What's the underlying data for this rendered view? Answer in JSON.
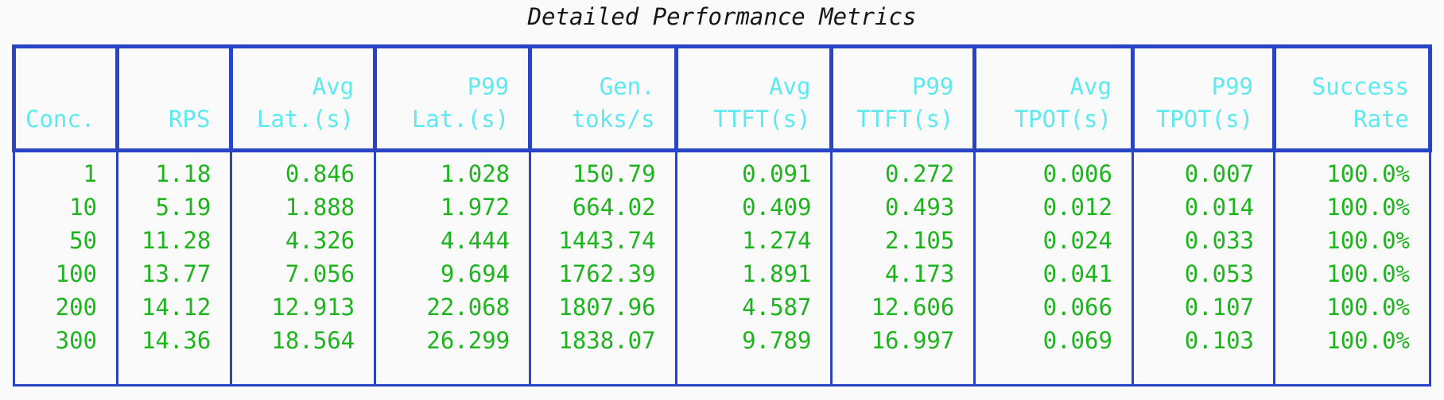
{
  "colors": {
    "background": "#fafafa",
    "border_blue": "#2a44c6",
    "header_text_cyan": "#5ee9f0",
    "data_text_green": "#1db41d",
    "title_text": "#161616"
  },
  "chart_data": {
    "type": "table",
    "title": "Detailed Performance Metrics",
    "columns": [
      "Conc.",
      "RPS",
      "Avg\nLat.(s)",
      "P99\nLat.(s)",
      "Gen.\ntoks/s",
      "Avg\nTTFT(s)",
      "P99\nTTFT(s)",
      "Avg\nTPOT(s)",
      "P99\nTPOT(s)",
      "Success\nRate"
    ],
    "rows": [
      [
        "1",
        "1.18",
        "0.846",
        "1.028",
        "150.79",
        "0.091",
        "0.272",
        "0.006",
        "0.007",
        "100.0%"
      ],
      [
        "10",
        "5.19",
        "1.888",
        "1.972",
        "664.02",
        "0.409",
        "0.493",
        "0.012",
        "0.014",
        "100.0%"
      ],
      [
        "50",
        "11.28",
        "4.326",
        "4.444",
        "1443.74",
        "1.274",
        "2.105",
        "0.024",
        "0.033",
        "100.0%"
      ],
      [
        "100",
        "13.77",
        "7.056",
        "9.694",
        "1762.39",
        "1.891",
        "4.173",
        "0.041",
        "0.053",
        "100.0%"
      ],
      [
        "200",
        "14.12",
        "12.913",
        "22.068",
        "1807.96",
        "4.587",
        "12.606",
        "0.066",
        "0.107",
        "100.0%"
      ],
      [
        "300",
        "14.36",
        "18.564",
        "26.299",
        "1838.07",
        "9.789",
        "16.997",
        "0.069",
        "0.103",
        "100.0%"
      ]
    ],
    "layout": {
      "col_widths_pct": [
        7.3,
        8.05,
        10.15,
        10.95,
        10.3,
        11.0,
        10.1,
        11.15,
        10.0,
        11.0
      ],
      "grid": "header cells thick blue border, data area thin blue borders, no horizontal row separators",
      "legend": "none"
    }
  }
}
